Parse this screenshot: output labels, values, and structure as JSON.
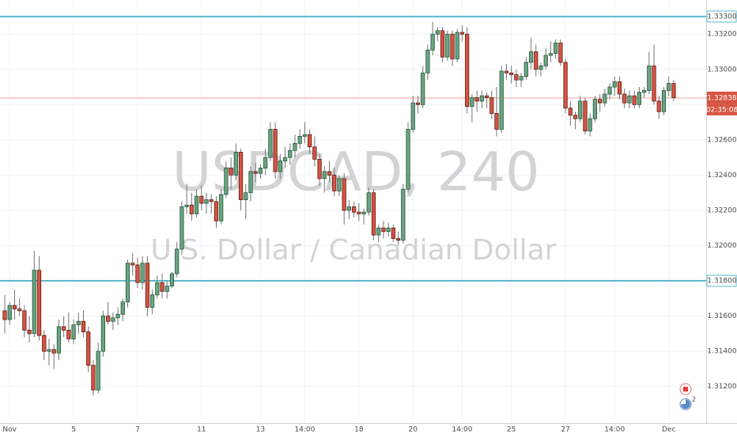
{
  "chart_data": {
    "type": "candlestick",
    "watermark": "USDCAD, 240",
    "watermark_subtitle": "U.S. Dollar / Canadian Dollar",
    "ylim": [
      1.30992,
      1.33394
    ],
    "yticks": [
      {
        "value": 1.312,
        "label": "1.31200"
      },
      {
        "value": 1.314,
        "label": "1.31400"
      },
      {
        "value": 1.316,
        "label": "1.31600"
      },
      {
        "value": 1.318,
        "label": "1.31800"
      },
      {
        "value": 1.32,
        "label": "1.32000"
      },
      {
        "value": 1.322,
        "label": "1.32200"
      },
      {
        "value": 1.324,
        "label": "1.32400"
      },
      {
        "value": 1.326,
        "label": "1.32600"
      },
      {
        "value": 1.328,
        "label": "1.32800"
      },
      {
        "value": 1.33,
        "label": "1.33000"
      },
      {
        "value": 1.332,
        "label": "1.33200"
      }
    ],
    "grid": true,
    "up_color": "#6ba583",
    "down_color": "#d75442",
    "levels": [
      {
        "value": 1.333,
        "label": "1.33300",
        "color": "#5bb8cc"
      },
      {
        "value": 1.318,
        "label": "1.31800",
        "color": "#5bb8cc"
      }
    ],
    "last_price": {
      "value": 1.32838,
      "label": "1.32838",
      "countdown": "02:35:08",
      "color": "#f0a0a0"
    },
    "events_badge": "2",
    "categories": [
      null,
      "Nov",
      null,
      null,
      null,
      null,
      null,
      null,
      null,
      null,
      null,
      null,
      null,
      null,
      "5",
      null,
      null,
      null,
      null,
      null,
      null,
      null,
      null,
      null,
      null,
      null,
      null,
      "7",
      null,
      null,
      null,
      null,
      null,
      null,
      null,
      null,
      null,
      null,
      null,
      null,
      "11",
      null,
      null,
      null,
      null,
      null,
      null,
      null,
      null,
      null,
      null,
      null,
      "13",
      null,
      null,
      null,
      null,
      null,
      null,
      null,
      null,
      "14:00",
      null,
      null,
      null,
      null,
      null,
      null,
      null,
      null,
      null,
      null,
      "18",
      null,
      null,
      null,
      null,
      null,
      null,
      null,
      null,
      null,
      null,
      "20",
      null,
      null,
      null,
      null,
      null,
      null,
      null,
      null,
      null,
      "14:00",
      null,
      null,
      null,
      null,
      null,
      null,
      null,
      null,
      null,
      "25",
      null,
      null,
      null,
      null,
      null,
      null,
      null,
      null,
      null,
      null,
      "27",
      null,
      null,
      null,
      null,
      null,
      null,
      null,
      null,
      null,
      "14:00",
      null,
      null,
      null,
      null,
      null,
      null,
      null,
      null,
      null,
      null,
      "Dec",
      null
    ],
    "ohlc": [
      [
        1.3163,
        1.3172,
        1.315,
        1.3158
      ],
      [
        1.3158,
        1.3168,
        1.3155,
        1.3166
      ],
      [
        1.3166,
        1.3175,
        1.3158,
        1.3164
      ],
      [
        1.3164,
        1.317,
        1.316,
        1.3163
      ],
      [
        1.3163,
        1.3166,
        1.3148,
        1.3152
      ],
      [
        1.3152,
        1.316,
        1.3145,
        1.315
      ],
      [
        1.315,
        1.3197,
        1.3148,
        1.3186
      ],
      [
        1.3186,
        1.3194,
        1.3146,
        1.3149
      ],
      [
        1.3149,
        1.3152,
        1.3135,
        1.314
      ],
      [
        1.314,
        1.3147,
        1.3132,
        1.3141
      ],
      [
        1.3141,
        1.3144,
        1.313,
        1.3139
      ],
      [
        1.3139,
        1.3158,
        1.3135,
        1.3154
      ],
      [
        1.3154,
        1.316,
        1.3148,
        1.3152
      ],
      [
        1.3152,
        1.3162,
        1.3145,
        1.3147
      ],
      [
        1.3147,
        1.3158,
        1.3144,
        1.3155
      ],
      [
        1.3155,
        1.3162,
        1.315,
        1.3157
      ],
      [
        1.3157,
        1.3163,
        1.3148,
        1.3151
      ],
      [
        1.3151,
        1.3154,
        1.3128,
        1.3132
      ],
      [
        1.3132,
        1.3135,
        1.3115,
        1.3118
      ],
      [
        1.3118,
        1.3145,
        1.3116,
        1.314
      ],
      [
        1.314,
        1.3163,
        1.3137,
        1.316
      ],
      [
        1.316,
        1.3168,
        1.3155,
        1.3157
      ],
      [
        1.3157,
        1.3162,
        1.3152,
        1.3159
      ],
      [
        1.3159,
        1.3165,
        1.3155,
        1.3161
      ],
      [
        1.3161,
        1.317,
        1.3157,
        1.3168
      ],
      [
        1.3168,
        1.3192,
        1.3165,
        1.319
      ],
      [
        1.319,
        1.3196,
        1.3183,
        1.3189
      ],
      [
        1.3189,
        1.3193,
        1.3176,
        1.3179
      ],
      [
        1.3179,
        1.3194,
        1.3175,
        1.319
      ],
      [
        1.319,
        1.3194,
        1.316,
        1.3165
      ],
      [
        1.3165,
        1.3175,
        1.3161,
        1.3172
      ],
      [
        1.3172,
        1.3183,
        1.317,
        1.3179
      ],
      [
        1.3179,
        1.3184,
        1.317,
        1.3174
      ],
      [
        1.3174,
        1.318,
        1.317,
        1.3177
      ],
      [
        1.3177,
        1.3185,
        1.3176,
        1.3184
      ],
      [
        1.3184,
        1.3202,
        1.3182,
        1.3198
      ],
      [
        1.3198,
        1.3225,
        1.3195,
        1.3222
      ],
      [
        1.3222,
        1.3235,
        1.3218,
        1.3223
      ],
      [
        1.3223,
        1.323,
        1.3214,
        1.3218
      ],
      [
        1.3218,
        1.3232,
        1.3216,
        1.3228
      ],
      [
        1.3228,
        1.3234,
        1.322,
        1.3224
      ],
      [
        1.3224,
        1.323,
        1.3218,
        1.3226
      ],
      [
        1.3226,
        1.3229,
        1.3218,
        1.3225
      ],
      [
        1.3225,
        1.3228,
        1.321,
        1.3214
      ],
      [
        1.3214,
        1.3232,
        1.3212,
        1.3229
      ],
      [
        1.3229,
        1.3248,
        1.3227,
        1.3244
      ],
      [
        1.3244,
        1.325,
        1.3232,
        1.324
      ],
      [
        1.324,
        1.3258,
        1.3237,
        1.3253
      ],
      [
        1.3253,
        1.3255,
        1.322,
        1.3226
      ],
      [
        1.3226,
        1.3235,
        1.3215,
        1.323
      ],
      [
        1.323,
        1.3245,
        1.3225,
        1.3242
      ],
      [
        1.3242,
        1.3247,
        1.3236,
        1.3241
      ],
      [
        1.3241,
        1.3246,
        1.3238,
        1.3244
      ],
      [
        1.3244,
        1.3255,
        1.324,
        1.325
      ],
      [
        1.325,
        1.327,
        1.3248,
        1.3266
      ],
      [
        1.3266,
        1.327,
        1.3238,
        1.3242
      ],
      [
        1.3242,
        1.3252,
        1.3238,
        1.3248
      ],
      [
        1.3248,
        1.3256,
        1.3244,
        1.325
      ],
      [
        1.325,
        1.3258,
        1.3246,
        1.3254
      ],
      [
        1.3254,
        1.3263,
        1.325,
        1.3258
      ],
      [
        1.3258,
        1.3266,
        1.3255,
        1.3262
      ],
      [
        1.3262,
        1.327,
        1.3258,
        1.3263
      ],
      [
        1.3263,
        1.3266,
        1.3252,
        1.3256
      ],
      [
        1.3256,
        1.3262,
        1.3245,
        1.3249
      ],
      [
        1.3249,
        1.3252,
        1.3234,
        1.3238
      ],
      [
        1.3238,
        1.3245,
        1.323,
        1.3242
      ],
      [
        1.3242,
        1.3248,
        1.3236,
        1.324
      ],
      [
        1.324,
        1.3244,
        1.3228,
        1.3231
      ],
      [
        1.3231,
        1.324,
        1.3228,
        1.3238
      ],
      [
        1.3238,
        1.3241,
        1.3212,
        1.322
      ],
      [
        1.322,
        1.3226,
        1.3215,
        1.3222
      ],
      [
        1.3222,
        1.3225,
        1.3216,
        1.3219
      ],
      [
        1.3219,
        1.3224,
        1.3214,
        1.3218
      ],
      [
        1.3218,
        1.3221,
        1.3212,
        1.3219
      ],
      [
        1.3219,
        1.3233,
        1.3217,
        1.323
      ],
      [
        1.323,
        1.3232,
        1.3203,
        1.3206
      ],
      [
        1.3206,
        1.3212,
        1.3202,
        1.321
      ],
      [
        1.321,
        1.3214,
        1.3204,
        1.3208
      ],
      [
        1.3208,
        1.3213,
        1.3205,
        1.321
      ],
      [
        1.321,
        1.3212,
        1.3202,
        1.3204
      ],
      [
        1.3204,
        1.3208,
        1.32,
        1.3203
      ],
      [
        1.3203,
        1.3235,
        1.3201,
        1.3232
      ],
      [
        1.3232,
        1.327,
        1.323,
        1.3266
      ],
      [
        1.3266,
        1.3285,
        1.3264,
        1.3281
      ],
      [
        1.3281,
        1.3285,
        1.3275,
        1.328
      ],
      [
        1.328,
        1.3302,
        1.3278,
        1.3298
      ],
      [
        1.3298,
        1.3314,
        1.3294,
        1.3311
      ],
      [
        1.3311,
        1.3327,
        1.3308,
        1.332
      ],
      [
        1.332,
        1.3324,
        1.3316,
        1.3322
      ],
      [
        1.3322,
        1.3324,
        1.3304,
        1.3307
      ],
      [
        1.3307,
        1.3322,
        1.3305,
        1.332
      ],
      [
        1.332,
        1.3322,
        1.3302,
        1.3306
      ],
      [
        1.3306,
        1.3323,
        1.3304,
        1.3321
      ],
      [
        1.3321,
        1.3325,
        1.3316,
        1.332
      ],
      [
        1.332,
        1.3324,
        1.3275,
        1.3279
      ],
      [
        1.3279,
        1.3286,
        1.327,
        1.3284
      ],
      [
        1.3284,
        1.3288,
        1.3276,
        1.3282
      ],
      [
        1.3282,
        1.3288,
        1.3278,
        1.3285
      ],
      [
        1.3285,
        1.3287,
        1.3278,
        1.3284
      ],
      [
        1.3284,
        1.3288,
        1.3272,
        1.3275
      ],
      [
        1.3275,
        1.329,
        1.3262,
        1.3266
      ],
      [
        1.3266,
        1.3302,
        1.3264,
        1.3299
      ],
      [
        1.3299,
        1.3303,
        1.3294,
        1.3298
      ],
      [
        1.3298,
        1.3302,
        1.3292,
        1.3297
      ],
      [
        1.3297,
        1.33,
        1.329,
        1.3294
      ],
      [
        1.3294,
        1.3298,
        1.329,
        1.3296
      ],
      [
        1.3296,
        1.3307,
        1.3294,
        1.3304
      ],
      [
        1.3304,
        1.3318,
        1.33,
        1.331
      ],
      [
        1.331,
        1.3314,
        1.3296,
        1.33
      ],
      [
        1.33,
        1.3304,
        1.3296,
        1.3302
      ],
      [
        1.3302,
        1.3312,
        1.33,
        1.3308
      ],
      [
        1.3308,
        1.3316,
        1.3304,
        1.3309
      ],
      [
        1.3309,
        1.3317,
        1.3306,
        1.3315
      ],
      [
        1.3315,
        1.3317,
        1.3302,
        1.3304
      ],
      [
        1.3304,
        1.3306,
        1.3275,
        1.3278
      ],
      [
        1.3278,
        1.3282,
        1.3268,
        1.3274
      ],
      [
        1.3274,
        1.3276,
        1.3266,
        1.3272
      ],
      [
        1.3272,
        1.3285,
        1.327,
        1.3282
      ],
      [
        1.3282,
        1.3284,
        1.3263,
        1.3265
      ],
      [
        1.3265,
        1.3275,
        1.3262,
        1.3272
      ],
      [
        1.3272,
        1.3285,
        1.327,
        1.3283
      ],
      [
        1.3283,
        1.3286,
        1.3276,
        1.3281
      ],
      [
        1.3281,
        1.3289,
        1.3279,
        1.3286
      ],
      [
        1.3286,
        1.3292,
        1.3283,
        1.329
      ],
      [
        1.329,
        1.3296,
        1.3285,
        1.3293
      ],
      [
        1.3293,
        1.3296,
        1.3283,
        1.3286
      ],
      [
        1.3286,
        1.3289,
        1.3278,
        1.3281
      ],
      [
        1.3281,
        1.3288,
        1.3278,
        1.3285
      ],
      [
        1.3285,
        1.3288,
        1.3278,
        1.328
      ],
      [
        1.328,
        1.329,
        1.3278,
        1.3287
      ],
      [
        1.3287,
        1.329,
        1.3284,
        1.3288
      ],
      [
        1.3288,
        1.331,
        1.3286,
        1.3302
      ],
      [
        1.3302,
        1.3314,
        1.328,
        1.3282
      ],
      [
        1.3282,
        1.3285,
        1.3272,
        1.3276
      ],
      [
        1.3276,
        1.329,
        1.3274,
        1.3288
      ],
      [
        1.3288,
        1.3296,
        1.3285,
        1.3292
      ],
      [
        1.3292,
        1.3294,
        1.3282,
        1.3284
      ]
    ]
  }
}
